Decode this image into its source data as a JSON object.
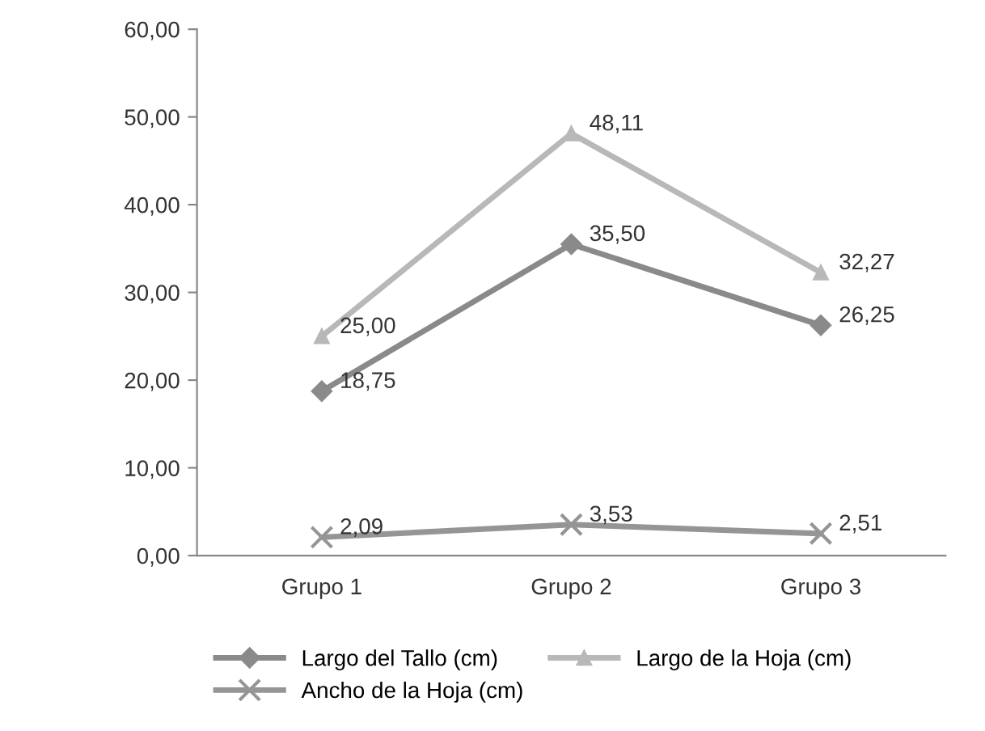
{
  "chart_data": {
    "type": "line",
    "categories": [
      "Grupo 1",
      "Grupo 2",
      "Grupo 3"
    ],
    "series": [
      {
        "name": "Largo del Tallo (cm)",
        "color": "#8a8a8a",
        "marker": "diamond",
        "values": [
          18.75,
          35.5,
          26.25
        ],
        "value_labels": [
          "18,75",
          "35,50",
          "26,25"
        ]
      },
      {
        "name": "Largo de la Hoja (cm)",
        "color": "#b8b8b8",
        "marker": "triangle",
        "values": [
          25.0,
          48.11,
          32.27
        ],
        "value_labels": [
          "25,00",
          "48,11",
          "32,27"
        ]
      },
      {
        "name": "Ancho de la Hoja (cm)",
        "color": "#959595",
        "marker": "cross",
        "values": [
          2.09,
          3.53,
          2.51
        ],
        "value_labels": [
          "2,09",
          "3,53",
          "2,51"
        ]
      }
    ],
    "ylim": [
      0,
      60
    ],
    "yticks": [
      {
        "value": 0,
        "label": "0,00"
      },
      {
        "value": 10,
        "label": "10,00"
      },
      {
        "value": 20,
        "label": "20,00"
      },
      {
        "value": 30,
        "label": "30,00"
      },
      {
        "value": 40,
        "label": "40,00"
      },
      {
        "value": 50,
        "label": "50,00"
      },
      {
        "value": 60,
        "label": "60,00"
      }
    ],
    "grid": false,
    "legend": "bottom"
  }
}
